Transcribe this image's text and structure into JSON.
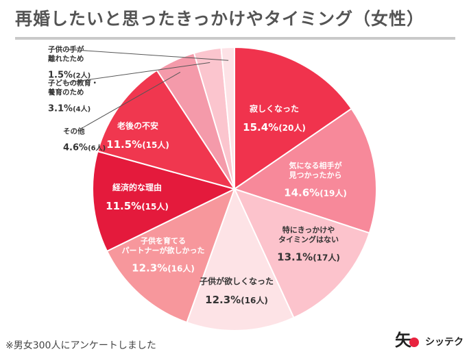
{
  "title": "再婚したいと思ったきっかけやタイミング（女性）",
  "footnote": "※男女300人にアンケートしました",
  "brand": {
    "mark": "矢",
    "name": "シッテク"
  },
  "chart_data": {
    "type": "pie",
    "title": "再婚したいと思ったきっかけやタイミング（女性）",
    "start": "12 o'clock",
    "direction": "clockwise",
    "slices": [
      {
        "label": "寂しくなった",
        "value": 15.4,
        "pct": "15.4%",
        "count": "(20人)",
        "color": "#f0334d",
        "text_color": "#ffffff"
      },
      {
        "label": "気になる相手が見つかったから",
        "value": 14.6,
        "pct": "14.6%",
        "count": "(19人)",
        "color": "#f7899a",
        "text_color": "#ffffff"
      },
      {
        "label": "特にきっかけやタイミングはない",
        "value": 13.1,
        "pct": "13.1%",
        "count": "(17人)",
        "color": "#fcc3cc",
        "text_color": "#333333"
      },
      {
        "label": "子供が欲しくなった",
        "value": 12.3,
        "pct": "12.3%",
        "count": "(16人)",
        "color": "#fde3e6",
        "text_color": "#333333"
      },
      {
        "label": "子供を育てるパートナーが欲しかった",
        "value": 12.3,
        "pct": "12.3%",
        "count": "(16人)",
        "color": "#f7979c",
        "text_color": "#ffffff"
      },
      {
        "label": "経済的な理由",
        "value": 11.5,
        "pct": "11.5%",
        "count": "(15人)",
        "color": "#e41a3c",
        "text_color": "#ffffff"
      },
      {
        "label": "老後の不安",
        "value": 11.5,
        "pct": "11.5%",
        "count": "(15人)",
        "color": "#f0374f",
        "text_color": "#ffffff"
      },
      {
        "label": "その他",
        "value": 4.6,
        "pct": "4.6%",
        "count": "(6人)",
        "color": "#f49aaa",
        "text_color": "#333333"
      },
      {
        "label": "子どもの教育・養育のため",
        "value": 3.1,
        "pct": "3.1%",
        "count": "(4人)",
        "color": "#fbc5ce",
        "text_color": "#333333"
      },
      {
        "label": "子供の手が離れたため",
        "value": 1.5,
        "pct": "1.5%",
        "count": "(2人)",
        "color": "#fde2e6",
        "text_color": "#333333"
      }
    ],
    "label_lines": [
      [
        "寂しくなった"
      ],
      [
        "気になる相手が",
        "見つかったから"
      ],
      [
        "特にきっかけや",
        "タイミングはない"
      ],
      [
        "子供が欲しくなった"
      ],
      [
        "子供を育てる",
        "パートナーが欲しかった"
      ],
      [
        "経済的な理由"
      ],
      [
        "老後の不安"
      ],
      [
        "その他"
      ],
      [
        "子どもの教育・",
        "養育のため"
      ],
      [
        "子供の手が",
        "離れたため"
      ]
    ]
  }
}
